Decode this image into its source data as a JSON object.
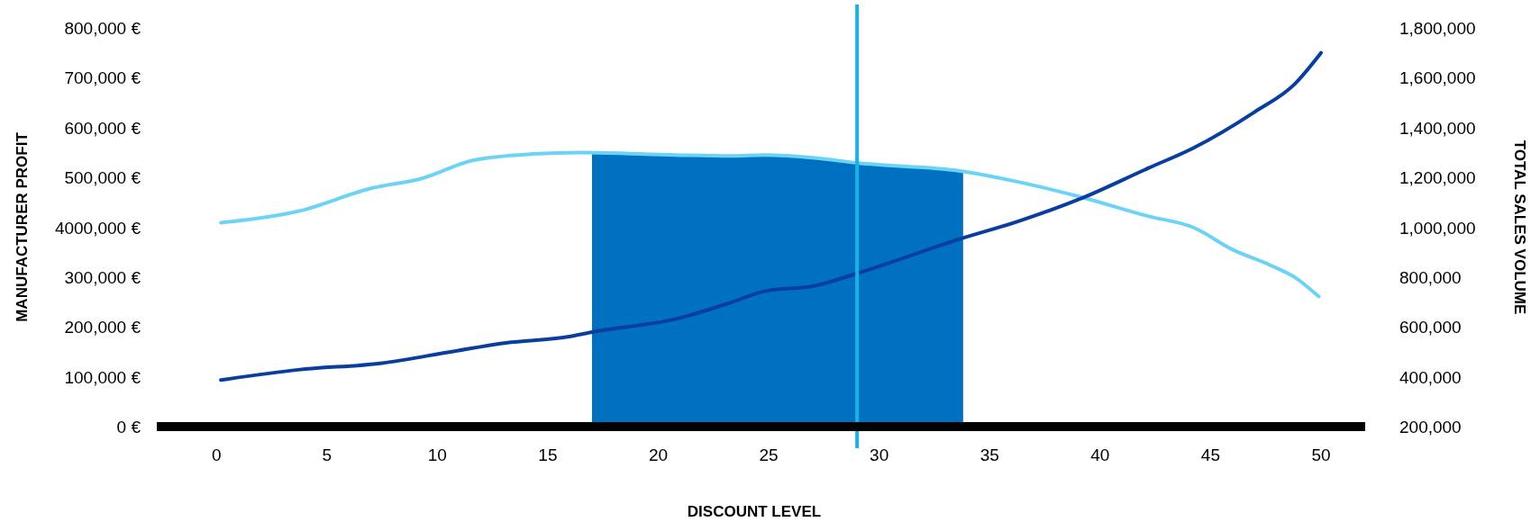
{
  "chart_data": {
    "type": "line",
    "xlabel": "DISCOUNT LEVEL",
    "ylabel": "MANUFACTURER PROFIT",
    "y2label": "TOTAL SALES VOLUME",
    "xlim": [
      -2.7,
      52
    ],
    "xticks": [
      0,
      5,
      10,
      15,
      20,
      25,
      30,
      35,
      40,
      45,
      50
    ],
    "ylim": [
      0,
      800000
    ],
    "yticks": [
      {
        "value": 0,
        "label": "0 €"
      },
      {
        "value": 100000,
        "label": "100,000 €"
      },
      {
        "value": 200000,
        "label": "200,000 €"
      },
      {
        "value": 300000,
        "label": "300,000 €"
      },
      {
        "value": 400000,
        "label": "4000,000 €"
      },
      {
        "value": 500000,
        "label": "500,000 €"
      },
      {
        "value": 600000,
        "label": "600,000 €"
      },
      {
        "value": 700000,
        "label": "700,000 €"
      },
      {
        "value": 800000,
        "label": "800,000 €"
      }
    ],
    "y2lim": [
      200000,
      1800000
    ],
    "y2ticks": [
      {
        "value": 200000,
        "label": "200,000"
      },
      {
        "value": 400000,
        "label": "400,000"
      },
      {
        "value": 600000,
        "label": "600,000"
      },
      {
        "value": 800000,
        "label": "800,000"
      },
      {
        "value": 1000000,
        "label": "1,000,000"
      },
      {
        "value": 1200000,
        "label": "1,200,000"
      },
      {
        "value": 1400000,
        "label": "1,400,000"
      },
      {
        "value": 1600000,
        "label": "1,600,000"
      },
      {
        "value": 1800000,
        "label": "1,800,000"
      }
    ],
    "grid": false,
    "marker": "none",
    "line_style": "solid",
    "ref_lines": [
      {
        "axis": "x",
        "value": 29,
        "color": "#1ab1e8"
      }
    ],
    "series": [
      {
        "type": "area",
        "color": "#0071c1",
        "x": [
          17,
          20.8,
          23.3,
          24.8,
          27.1,
          29,
          33.8
        ],
        "values": [
          549000,
          545000,
          543000,
          545000,
          539000,
          529000,
          512000
        ]
      },
      {
        "color": "#6dd3f5",
        "x": [
          0.2,
          3.7,
          7,
          9.3,
          11.6,
          14.3,
          16.5,
          20.8,
          23.3,
          24.8,
          27.1,
          29,
          33.8,
          36.3,
          39.1,
          42.2,
          44.2,
          46,
          47.7,
          48.8,
          49.9
        ],
        "values": [
          409000,
          432000,
          478000,
          498000,
          534000,
          547000,
          550000,
          545000,
          543000,
          545000,
          539000,
          529000,
          512000,
          491000,
          461000,
          422000,
          400000,
          355000,
          324000,
          300000,
          261000
        ]
      },
      {
        "color": "#0a3e9e",
        "axis": "y2",
        "x": [
          0.2,
          3.7,
          7.5,
          10.6,
          13.1,
          15.9,
          17.1,
          20.8,
          23.3,
          24.8,
          27.1,
          29,
          33.8,
          36.3,
          39.1,
          42.2,
          44.2,
          47,
          48.8,
          50
        ],
        "values": [
          387000,
          428000,
          455000,
          500000,
          536000,
          560000,
          581000,
          632000,
          698000,
          743000,
          765000,
          815000,
          957000,
          1024000,
          1114000,
          1238000,
          1317000,
          1463000,
          1574000,
          1700000
        ]
      }
    ]
  }
}
